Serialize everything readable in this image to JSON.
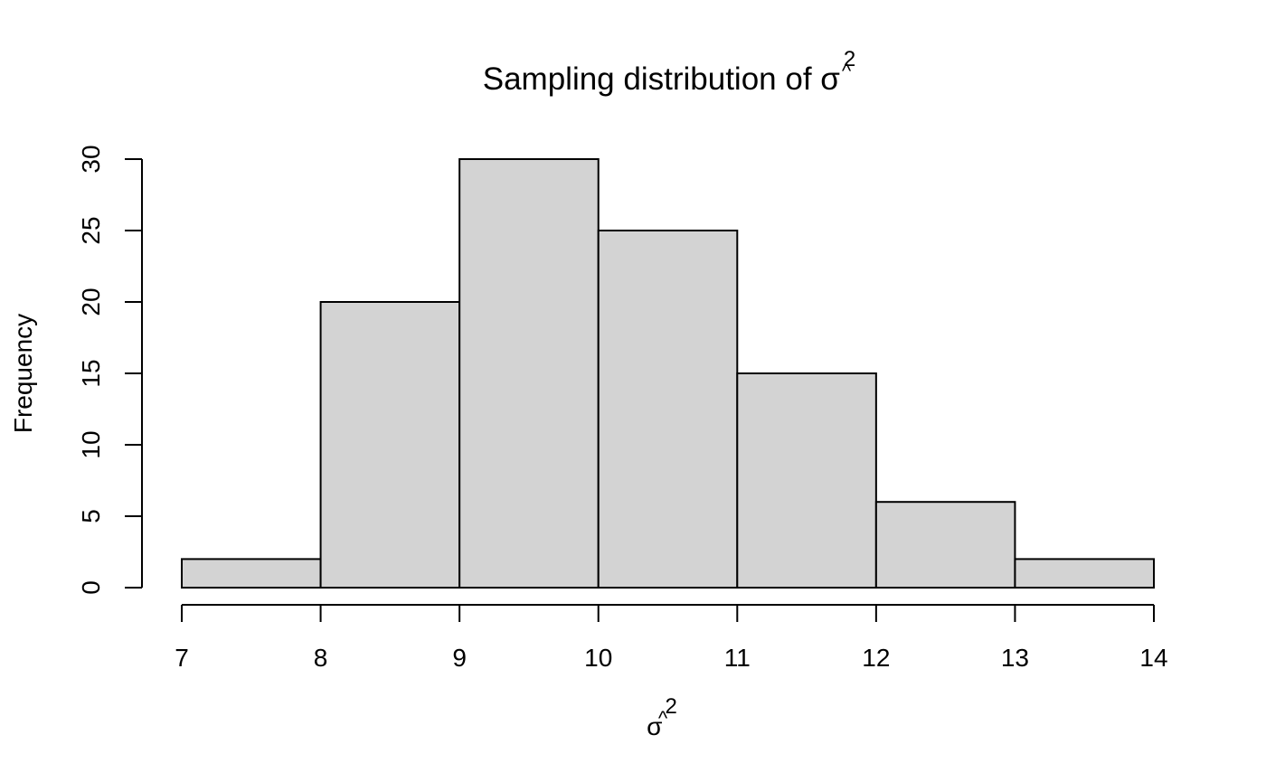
{
  "chart_data": {
    "type": "bar",
    "histogram": true,
    "title": {
      "text": "Sampling distribution of ",
      "symbol": "σ",
      "accent": "^",
      "superscript": "2"
    },
    "xlabel": {
      "symbol": "σ",
      "accent": "^",
      "superscript": "2"
    },
    "ylabel": "Frequency",
    "bins": [
      {
        "start": 7,
        "end": 8,
        "count": 2
      },
      {
        "start": 8,
        "end": 9,
        "count": 20
      },
      {
        "start": 9,
        "end": 10,
        "count": 30
      },
      {
        "start": 10,
        "end": 11,
        "count": 25
      },
      {
        "start": 11,
        "end": 12,
        "count": 15
      },
      {
        "start": 12,
        "end": 13,
        "count": 6
      },
      {
        "start": 13,
        "end": 14,
        "count": 2
      }
    ],
    "x_ticks": [
      7,
      8,
      9,
      10,
      11,
      12,
      13,
      14
    ],
    "y_ticks": [
      0,
      5,
      10,
      15,
      20,
      25,
      30
    ],
    "xlim": [
      7,
      14
    ],
    "ylim": [
      0,
      30
    ],
    "bar_color": "#d3d3d3",
    "border_color": "#000000",
    "grid": false,
    "legend": "none"
  }
}
